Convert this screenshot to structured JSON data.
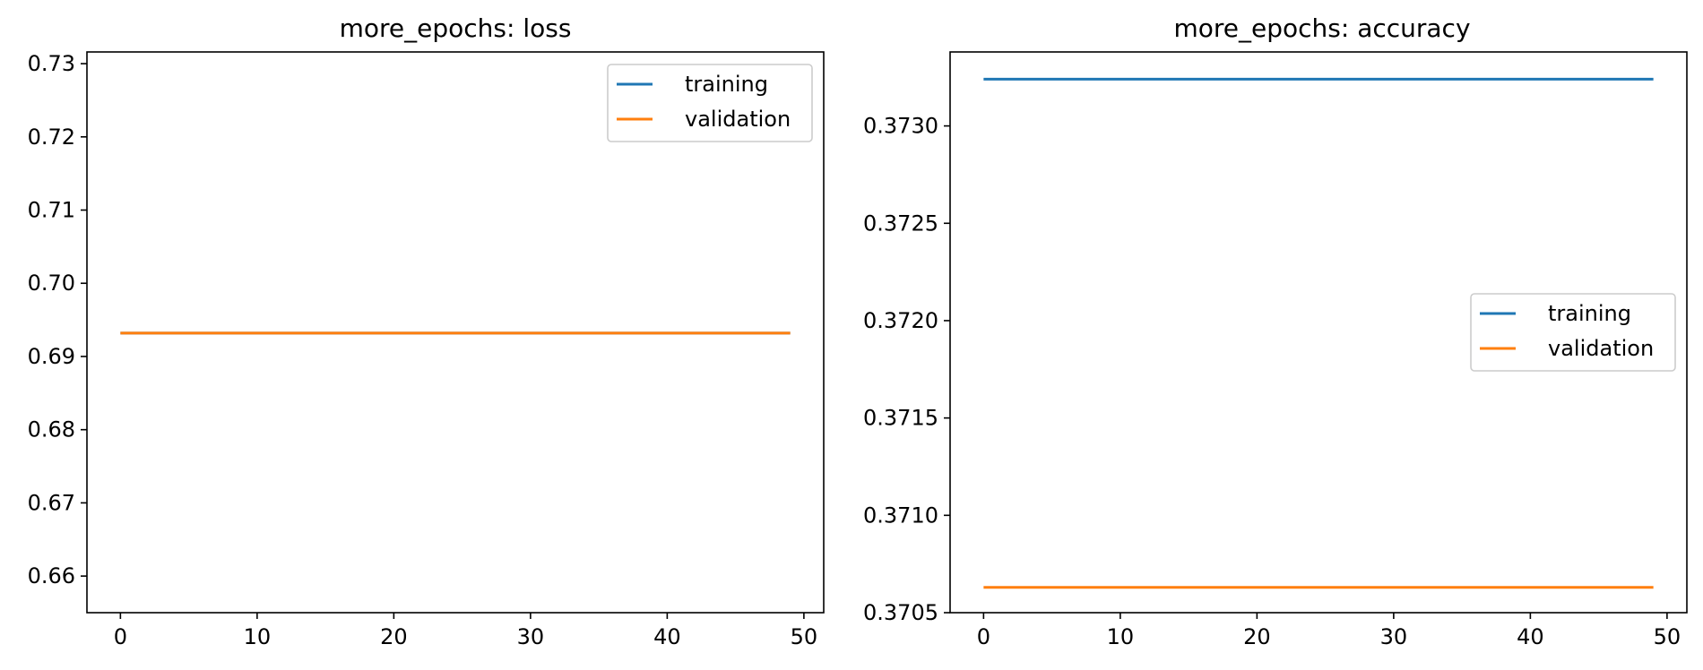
{
  "chart_data": [
    {
      "type": "line",
      "title": "more_epochs: loss",
      "xlabel": "",
      "ylabel": "",
      "xlim": [
        -2.45,
        51.45
      ],
      "ylim": [
        0.655,
        0.7316
      ],
      "xticks": [
        0,
        10,
        20,
        30,
        40,
        50
      ],
      "xtick_labels": [
        "0",
        "10",
        "20",
        "30",
        "40",
        "50"
      ],
      "yticks": [
        0.66,
        0.67,
        0.68,
        0.69,
        0.7,
        0.71,
        0.72,
        0.73
      ],
      "ytick_labels": [
        "0.66",
        "0.67",
        "0.68",
        "0.69",
        "0.70",
        "0.71",
        "0.72",
        "0.73"
      ],
      "grid": false,
      "legend_position": "upper right",
      "series": [
        {
          "name": "training",
          "color": "#1f77b4",
          "x": [
            0,
            49
          ],
          "y": [
            0.6932,
            0.6932
          ]
        },
        {
          "name": "validation",
          "color": "#ff7f0e",
          "x": [
            0,
            49
          ],
          "y": [
            0.6932,
            0.6932
          ]
        }
      ]
    },
    {
      "type": "line",
      "title": "more_epochs: accuracy",
      "xlabel": "",
      "ylabel": "",
      "xlim": [
        -2.45,
        51.45
      ],
      "ylim": [
        0.3705,
        0.37338
      ],
      "xticks": [
        0,
        10,
        20,
        30,
        40,
        50
      ],
      "xtick_labels": [
        "0",
        "10",
        "20",
        "30",
        "40",
        "50"
      ],
      "yticks": [
        0.3705,
        0.371,
        0.3715,
        0.372,
        0.3725,
        0.373
      ],
      "ytick_labels": [
        "0.3705",
        "0.3710",
        "0.3715",
        "0.3720",
        "0.3725",
        "0.3730"
      ],
      "grid": false,
      "legend_position": "center right",
      "series": [
        {
          "name": "training",
          "color": "#1f77b4",
          "x": [
            0,
            49
          ],
          "y": [
            0.37324,
            0.37324
          ]
        },
        {
          "name": "validation",
          "color": "#ff7f0e",
          "x": [
            0,
            49
          ],
          "y": [
            0.37063,
            0.37063
          ]
        }
      ]
    }
  ]
}
